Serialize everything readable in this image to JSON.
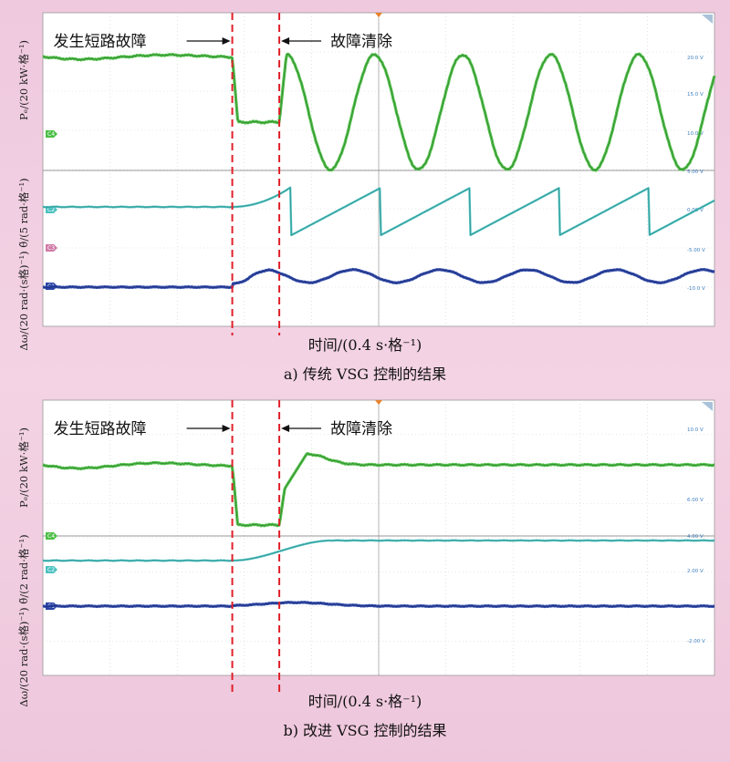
{
  "chart_data": [
    {
      "type": "line",
      "panel": "a",
      "caption": "a) 传统 VSG 控制的结果",
      "xlabel": "时间/(0.4 s·格⁻¹)",
      "ylabel_top": "Pₑ/(20 kW·格⁻¹)",
      "ylabel_bottom": "Δω/(20 rad·(s格)⁻¹) θ̃/(5 rad·格⁻¹)",
      "annotation_fault": "发生短路故障",
      "annotation_clear": "故障清除",
      "fault_time_div": 2.82,
      "clear_time_div": 3.52,
      "x_divisions": 10,
      "y_divisions": 8,
      "channel_labels": [
        "C4",
        "C2",
        "C3",
        "C1"
      ],
      "right_labels": [
        "20.0 V",
        "15.0 V",
        "10.0 V",
        "5.00 V",
        "0.00 V",
        "-5.00 V",
        "-10.0 V"
      ],
      "series": [
        {
          "name": "Pe",
          "color": "#3fae3a"
        },
        {
          "name": "θ̃",
          "color": "#45b7b5"
        },
        {
          "name": "Δω",
          "color": "#253d95"
        }
      ]
    },
    {
      "type": "line",
      "panel": "b",
      "caption": "b) 改进 VSG 控制的结果",
      "xlabel": "时间/(0.4 s·格⁻¹)",
      "ylabel_top": "Pₑ/(20 kW·格⁻¹)",
      "ylabel_bottom": "Δω/(20 rad·(s格)⁻¹) θ̃/(2 rad·格⁻¹)",
      "annotation_fault": "发生短路故障",
      "annotation_clear": "故障清除",
      "fault_time_div": 2.82,
      "clear_time_div": 3.52,
      "x_divisions": 10,
      "y_divisions": 8,
      "channel_labels": [
        "C4",
        "C2",
        "C1"
      ],
      "right_labels": [
        "10.0 V",
        "6.00 V",
        "4.00 V",
        "2.00 V",
        "-2.00 V"
      ],
      "series": [
        {
          "name": "Pe",
          "color": "#3fae3a"
        },
        {
          "name": "θ̃",
          "color": "#45b7b5"
        },
        {
          "name": "Δω",
          "color": "#253d95"
        }
      ]
    }
  ]
}
